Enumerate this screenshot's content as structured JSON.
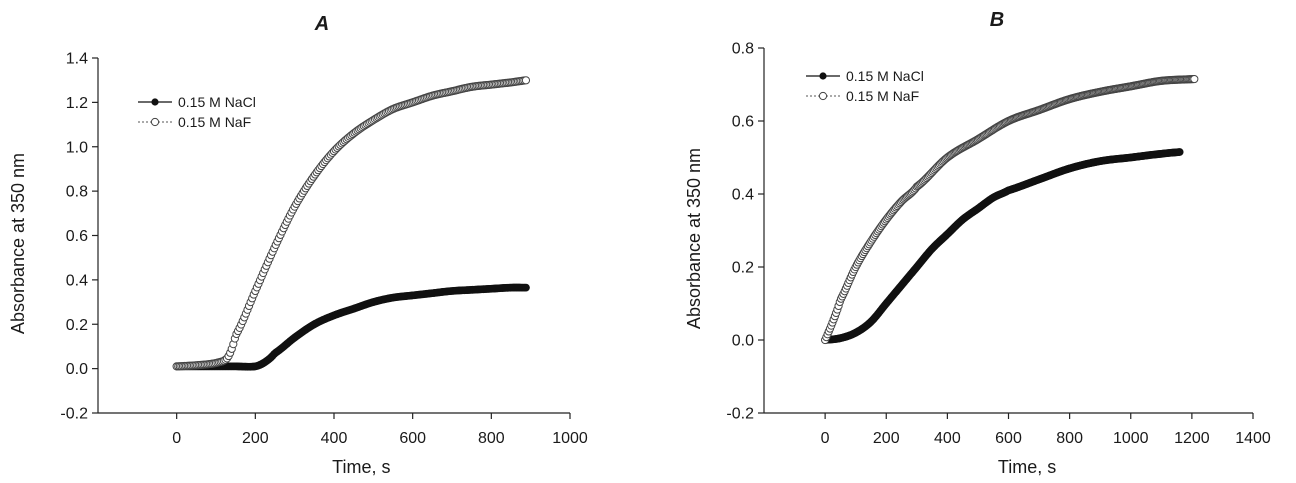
{
  "chart_data": [
    {
      "type": "scatter",
      "panel": "A",
      "title": "",
      "xlabel": "Time, s",
      "ylabel": "Absorbance at 350 nm",
      "xlim": [
        -200,
        1000
      ],
      "ylim": [
        -0.2,
        1.4
      ],
      "xticks": [
        "0",
        "200",
        "400",
        "600",
        "800",
        "1000"
      ],
      "yticks": [
        "-0.2",
        "0.0",
        "0.2",
        "0.4",
        "0.6",
        "0.8",
        "1.0",
        "1.2",
        "1.4"
      ],
      "grid": false,
      "legend_position": "top-left",
      "series": [
        {
          "name": "0.15 M NaCl",
          "marker": "filled-circle",
          "x": [
            0,
            50,
            100,
            150,
            200,
            225,
            250,
            300,
            350,
            400,
            450,
            500,
            550,
            600,
            650,
            700,
            750,
            800,
            850,
            890
          ],
          "y": [
            0.01,
            0.01,
            0.01,
            0.01,
            0.01,
            0.03,
            0.07,
            0.14,
            0.2,
            0.24,
            0.27,
            0.3,
            0.32,
            0.33,
            0.34,
            0.35,
            0.355,
            0.36,
            0.365,
            0.365
          ]
        },
        {
          "name": "0.15 M NaF",
          "marker": "open-circle",
          "x": [
            0,
            50,
            100,
            130,
            150,
            200,
            250,
            300,
            350,
            400,
            450,
            500,
            550,
            600,
            650,
            700,
            750,
            800,
            850,
            890
          ],
          "y": [
            0.01,
            0.015,
            0.025,
            0.05,
            0.15,
            0.35,
            0.55,
            0.73,
            0.87,
            0.98,
            1.06,
            1.12,
            1.17,
            1.2,
            1.23,
            1.25,
            1.27,
            1.28,
            1.29,
            1.3
          ]
        }
      ]
    },
    {
      "type": "scatter",
      "panel": "B",
      "title": "",
      "xlabel": "Time, s",
      "ylabel": "Absorbance at 350 nm",
      "xlim": [
        -200,
        1400
      ],
      "ylim": [
        -0.2,
        0.8
      ],
      "xticks": [
        "0",
        "200",
        "400",
        "600",
        "800",
        "1000",
        "1200",
        "1400"
      ],
      "yticks": [
        "-0.2",
        "0.0",
        "0.2",
        "0.4",
        "0.6",
        "0.8"
      ],
      "grid": false,
      "legend_position": "top-left",
      "series": [
        {
          "name": "0.15 M NaCl",
          "marker": "filled-circle",
          "x": [
            0,
            50,
            100,
            150,
            200,
            250,
            300,
            350,
            400,
            450,
            500,
            550,
            600,
            700,
            800,
            900,
            1000,
            1100,
            1160
          ],
          "y": [
            0.0,
            0.005,
            0.02,
            0.05,
            0.1,
            0.15,
            0.2,
            0.25,
            0.29,
            0.33,
            0.36,
            0.39,
            0.41,
            0.44,
            0.47,
            0.49,
            0.5,
            0.51,
            0.515
          ]
        },
        {
          "name": "0.15 M NaF",
          "marker": "open-circle",
          "x": [
            0,
            25,
            50,
            100,
            150,
            200,
            250,
            300,
            400,
            500,
            600,
            700,
            800,
            900,
            1000,
            1100,
            1210
          ],
          "y": [
            0.0,
            0.05,
            0.11,
            0.2,
            0.27,
            0.33,
            0.38,
            0.42,
            0.5,
            0.55,
            0.6,
            0.63,
            0.66,
            0.68,
            0.695,
            0.71,
            0.715
          ]
        }
      ]
    }
  ]
}
